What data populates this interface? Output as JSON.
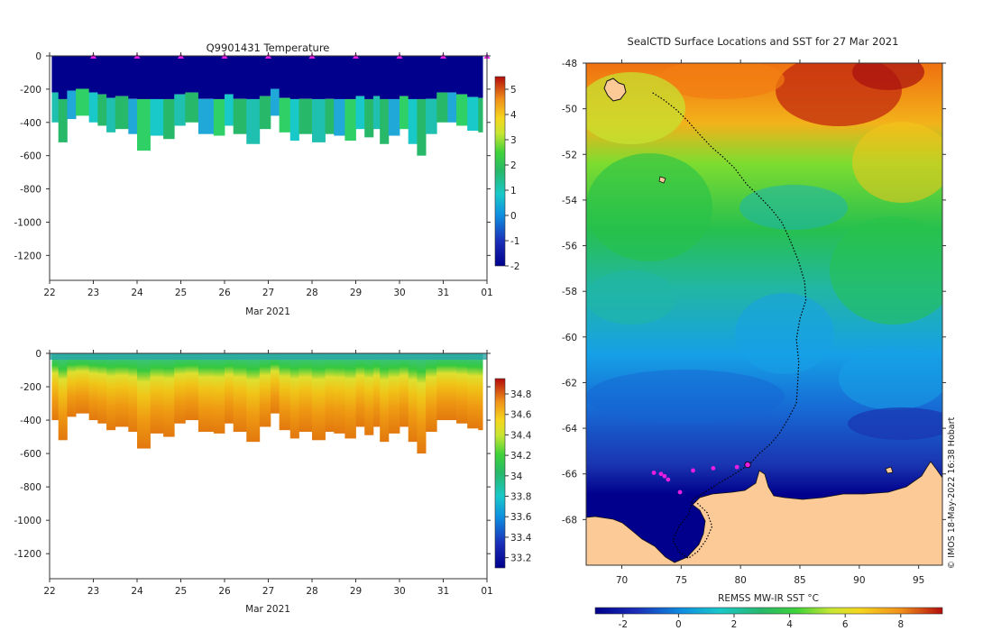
{
  "chart_data": [
    {
      "type": "heatmap",
      "title": "Q9901431  Temperature",
      "xlabel": "Mar 2021",
      "ylabel": "",
      "x_tick_labels": [
        "22",
        "23",
        "24",
        "25",
        "26",
        "27",
        "28",
        "29",
        "30",
        "31",
        "01"
      ],
      "x_range_days": [
        22,
        32
      ],
      "y_ticks": [
        0,
        -200,
        -400,
        -600,
        -800,
        -1000,
        -1200
      ],
      "ylim": [
        -1350,
        0
      ],
      "profile_days": [
        22.05,
        22.2,
        22.4,
        22.6,
        22.9,
        23.1,
        23.3,
        23.5,
        23.8,
        24.0,
        24.3,
        24.6,
        24.85,
        25.1,
        25.4,
        25.75,
        26.0,
        26.2,
        26.5,
        26.8,
        27.05,
        27.25,
        27.5,
        27.7,
        28.0,
        28.3,
        28.5,
        28.75,
        29.0,
        29.2,
        29.4,
        29.55,
        29.75,
        30.0,
        30.2,
        30.4,
        30.6,
        30.85,
        31.1,
        31.3,
        31.55,
        31.8
      ],
      "profile_max_depth": [
        400,
        520,
        380,
        360,
        400,
        420,
        460,
        440,
        470,
        570,
        480,
        500,
        420,
        400,
        470,
        480,
        420,
        470,
        530,
        440,
        360,
        460,
        510,
        470,
        520,
        470,
        480,
        510,
        440,
        490,
        440,
        530,
        480,
        440,
        530,
        600,
        470,
        400,
        400,
        420,
        450,
        460
      ],
      "colorbar": {
        "min": -2,
        "max": 5.5,
        "ticks": [
          -2,
          -1,
          0,
          1,
          2,
          3,
          4,
          5
        ]
      },
      "surface_markers_days": [
        23,
        24,
        25,
        26,
        27,
        28,
        29,
        30,
        31,
        32
      ]
    },
    {
      "type": "heatmap",
      "title": "",
      "xlabel": "Mar 2021",
      "ylabel": "",
      "x_tick_labels": [
        "22",
        "23",
        "24",
        "25",
        "26",
        "27",
        "28",
        "29",
        "30",
        "31",
        "01"
      ],
      "x_range_days": [
        22,
        32
      ],
      "y_ticks": [
        0,
        -200,
        -400,
        -600,
        -800,
        -1000,
        -1200
      ],
      "ylim": [
        -1350,
        0
      ],
      "colorbar": {
        "min": 33.1,
        "max": 34.95,
        "ticks": [
          "33.2",
          "33.4",
          "33.6",
          "33.8",
          "34",
          "34.2",
          "34.4",
          "34.6",
          "34.8"
        ]
      }
    },
    {
      "type": "heatmap",
      "title": "SealCTD Surface Locations and SST for 27 Mar 2021",
      "xlabel": "",
      "ylabel": "",
      "lon_range": [
        67,
        97
      ],
      "lat_range": [
        -70,
        -48
      ],
      "x_ticks": [
        70,
        75,
        80,
        85,
        90,
        95
      ],
      "y_ticks": [
        -48,
        -50,
        -52,
        -54,
        -56,
        -58,
        -60,
        -62,
        -64,
        -66,
        -68
      ],
      "colorbar": {
        "label": "REMSS MW-IR SST °C",
        "min": -3,
        "max": 9.5,
        "ticks": [
          -2,
          0,
          2,
          4,
          6,
          8
        ]
      },
      "track": [
        [
          72.6,
          -49.3
        ],
        [
          73.5,
          -49.6
        ],
        [
          74.5,
          -50.0
        ],
        [
          75.5,
          -50.5
        ],
        [
          76.5,
          -51.1
        ],
        [
          77.6,
          -51.7
        ],
        [
          78.5,
          -52.1
        ],
        [
          79.5,
          -52.6
        ],
        [
          80.5,
          -53.3
        ],
        [
          81.5,
          -53.8
        ],
        [
          82.6,
          -54.4
        ],
        [
          83.5,
          -55.0
        ],
        [
          84.2,
          -55.8
        ],
        [
          84.9,
          -56.7
        ],
        [
          85.4,
          -57.6
        ],
        [
          85.5,
          -58.4
        ],
        [
          85.0,
          -59.2
        ],
        [
          84.7,
          -60.1
        ],
        [
          84.9,
          -61.1
        ],
        [
          84.8,
          -62.1
        ],
        [
          84.7,
          -62.9
        ],
        [
          84.0,
          -63.6
        ],
        [
          83.3,
          -64.2
        ],
        [
          82.5,
          -64.7
        ],
        [
          81.6,
          -65.1
        ],
        [
          80.7,
          -65.6
        ],
        [
          79.5,
          -66.0
        ],
        [
          78.2,
          -66.4
        ],
        [
          77.0,
          -66.8
        ],
        [
          76.0,
          -67.1
        ],
        [
          75.6,
          -67.8
        ],
        [
          74.8,
          -68.3
        ],
        [
          74.3,
          -68.9
        ],
        [
          74.8,
          -69.4
        ],
        [
          75.6,
          -69.7
        ],
        [
          76.4,
          -69.4
        ],
        [
          77.1,
          -68.9
        ],
        [
          77.6,
          -68.3
        ],
        [
          77.2,
          -67.7
        ],
        [
          76.2,
          -67.2
        ]
      ],
      "surface_locations": [
        [
          72.7,
          -65.95
        ],
        [
          73.3,
          -66.0
        ],
        [
          73.6,
          -66.1
        ],
        [
          73.9,
          -66.25
        ],
        [
          74.9,
          -66.8
        ],
        [
          76.0,
          -65.85
        ],
        [
          77.7,
          -65.75
        ],
        [
          79.7,
          -65.7
        ],
        [
          80.6,
          -65.6
        ]
      ],
      "attribution": "© IMOS 18-May-2022 16:38 Hobart"
    }
  ]
}
